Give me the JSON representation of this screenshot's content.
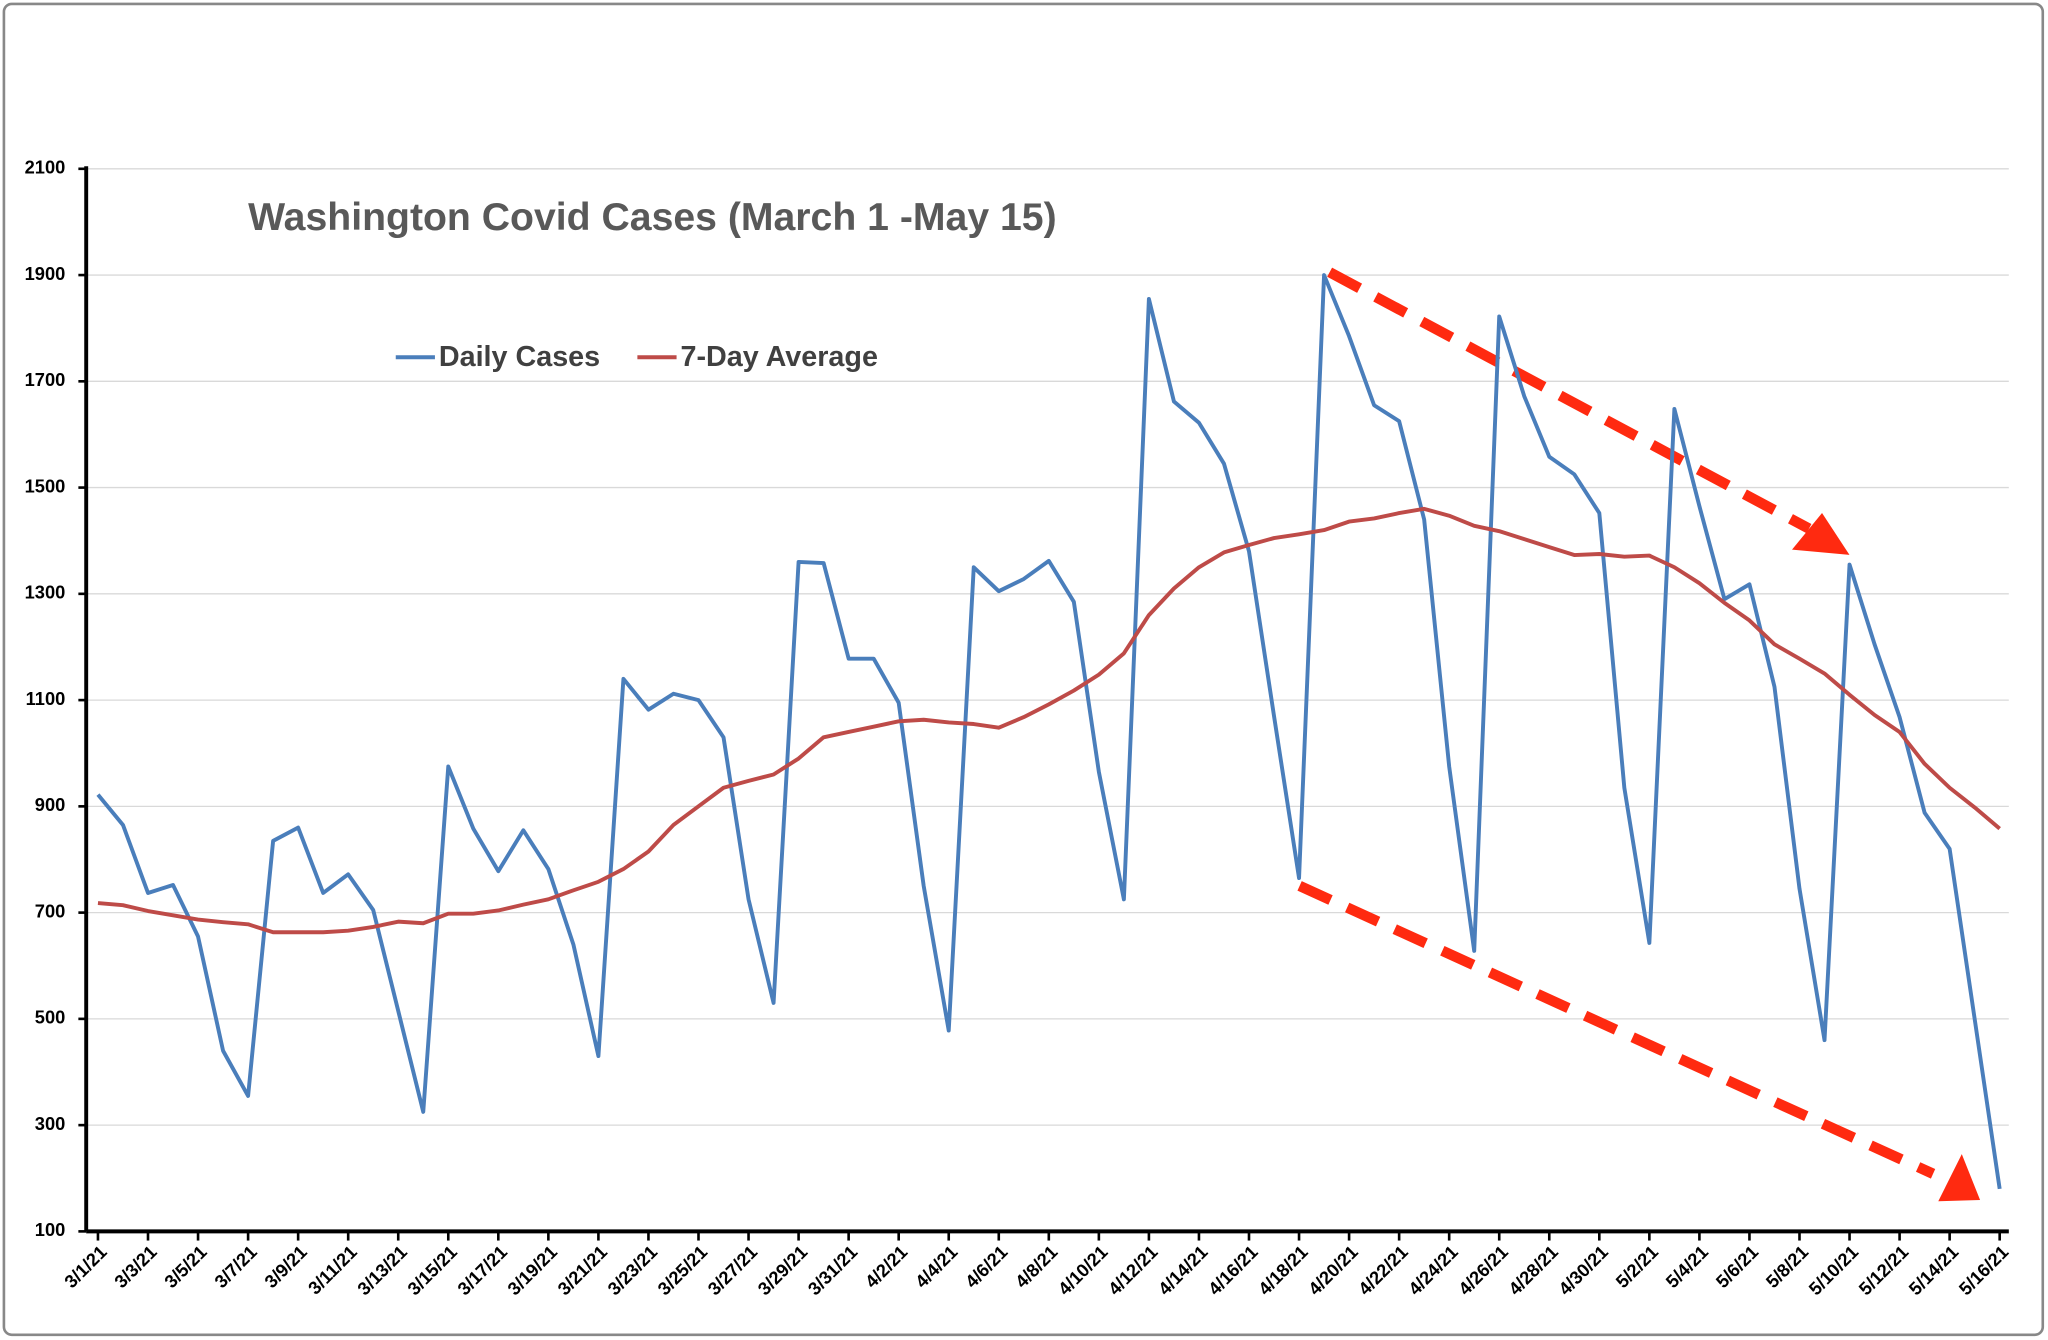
{
  "chart_data": {
    "type": "line",
    "title": "Washington Covid  Cases (March 1 -May 15)",
    "categories": [
      "3/1/21",
      null,
      "3/3/21",
      null,
      "3/5/21",
      null,
      "3/7/21",
      null,
      "3/9/21",
      null,
      "3/11/21",
      null,
      "3/13/21",
      null,
      "3/15/21",
      null,
      "3/17/21",
      null,
      "3/19/21",
      null,
      "3/21/21",
      null,
      "3/23/21",
      null,
      "3/25/21",
      null,
      "3/27/21",
      null,
      "3/29/21",
      null,
      "3/31/21",
      null,
      "4/2/21",
      null,
      "4/4/21",
      null,
      "4/6/21",
      null,
      "4/8/21",
      null,
      "4/10/21",
      null,
      "4/12/21",
      null,
      "4/14/21",
      null,
      "4/16/21",
      null,
      "4/18/21",
      null,
      "4/20/21",
      null,
      "4/22/21",
      null,
      "4/24/21",
      null,
      "4/26/21",
      null,
      "4/28/21",
      null,
      "4/30/21",
      null,
      "5/2/21",
      null,
      "5/4/21",
      null,
      "5/6/21",
      null,
      "5/8/21",
      null,
      "5/10/21",
      null,
      "5/12/21",
      null,
      "5/14/21",
      null,
      "5/16/21"
    ],
    "series": [
      {
        "name": "Daily Cases",
        "color": "#4a7ebb",
        "values": [
          922,
          865,
          737,
          752,
          655,
          440,
          355,
          835,
          860,
          737,
          772,
          705,
          515,
          325,
          975,
          858,
          778,
          855,
          782,
          640,
          430,
          1140,
          1082,
          1112,
          1100,
          1030,
          725,
          530,
          1360,
          1358,
          1178,
          1178,
          1095,
          750,
          478,
          1350,
          1305,
          1328,
          1362,
          1285,
          965,
          725,
          1855,
          1662,
          1622,
          1545,
          1380,
          1070,
          765,
          1900,
          1785,
          1655,
          1625,
          1440,
          975,
          628,
          1822,
          1672,
          1558,
          1525,
          1452,
          935,
          643,
          1648,
          1465,
          1290,
          1318,
          1125,
          745,
          460,
          1355,
          1205,
          1068,
          888,
          820,
          500,
          180
        ]
      },
      {
        "name": "7-Day Average",
        "color": "#be4b48",
        "values": [
          718,
          714,
          703,
          695,
          687,
          682,
          678,
          663,
          663,
          663,
          666,
          673,
          683,
          680,
          698,
          698,
          704,
          715,
          725,
          742,
          758,
          782,
          815,
          865,
          900,
          935,
          948,
          960,
          990,
          1030,
          1040,
          1050,
          1060,
          1063,
          1058,
          1055,
          1048,
          1068,
          1092,
          1118,
          1148,
          1188,
          1260,
          1310,
          1350,
          1378,
          1392,
          1405,
          1412,
          1420,
          1436,
          1442,
          1452,
          1460,
          1447,
          1428,
          1418,
          1403,
          1388,
          1373,
          1375,
          1370,
          1372,
          1350,
          1320,
          1283,
          1250,
          1205,
          1178,
          1150,
          1110,
          1072,
          1040,
          980,
          935,
          898,
          858
        ]
      }
    ],
    "ylim": [
      100,
      2100
    ],
    "yticks": [
      100,
      300,
      500,
      700,
      900,
      1100,
      1300,
      1500,
      1700,
      1900,
      2100
    ],
    "grid": true
  }
}
